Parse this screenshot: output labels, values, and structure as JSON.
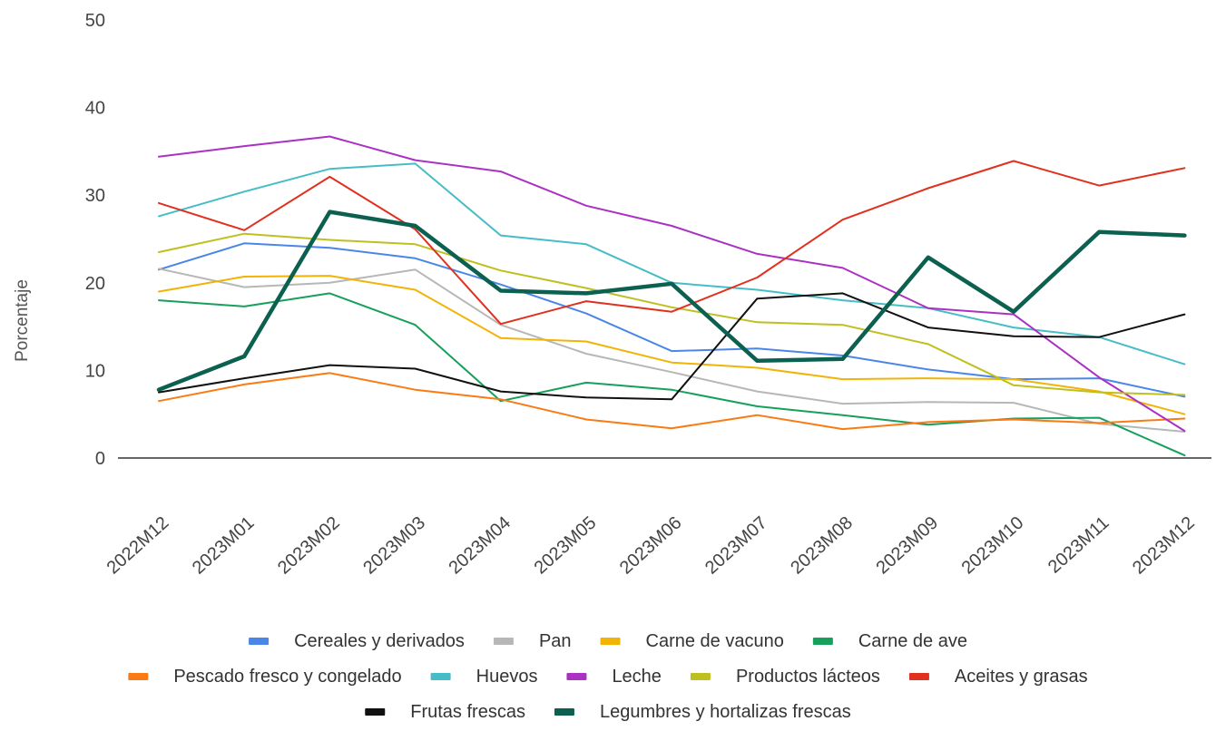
{
  "chart_data": {
    "type": "line",
    "title": "",
    "xlabel": "",
    "ylabel": "Porcentaje",
    "ylim": [
      0,
      50
    ],
    "yticks": [
      "0",
      "10",
      "20",
      "30",
      "40",
      "50"
    ],
    "grid": false,
    "legend_position": "bottom",
    "categories": [
      "2022M12",
      "2023M01",
      "2023M02",
      "2023M03",
      "2023M04",
      "2023M05",
      "2023M06",
      "2023M07",
      "2023M08",
      "2023M09",
      "2023M10",
      "2023M11",
      "2023M12"
    ],
    "series": [
      {
        "name": "Cereales y derivados",
        "color": "#4a86e8",
        "values": [
          21.5,
          24.5,
          24.0,
          22.8,
          19.8,
          16.5,
          12.2,
          12.5,
          11.7,
          10.1,
          9.0,
          9.1,
          7.0
        ]
      },
      {
        "name": "Pan",
        "color": "#b7b7b7",
        "values": [
          21.6,
          19.5,
          20.0,
          21.5,
          15.2,
          11.9,
          9.8,
          7.6,
          6.2,
          6.4,
          6.3,
          3.9,
          3.0
        ]
      },
      {
        "name": "Carne de vacuno",
        "color": "#f1b405",
        "values": [
          19.0,
          20.7,
          20.8,
          19.2,
          13.7,
          13.3,
          10.9,
          10.3,
          9.0,
          9.1,
          9.0,
          7.6,
          5.0
        ]
      },
      {
        "name": "Carne de ave",
        "color": "#16a05c",
        "values": [
          18.0,
          17.3,
          18.8,
          15.2,
          6.5,
          8.6,
          7.8,
          5.9,
          4.9,
          3.8,
          4.5,
          4.6,
          0.3
        ]
      },
      {
        "name": "Pescado fresco y congelado",
        "color": "#fa7a13",
        "values": [
          6.5,
          8.4,
          9.7,
          7.8,
          6.7,
          4.4,
          3.4,
          4.9,
          3.3,
          4.1,
          4.4,
          4.0,
          4.5
        ]
      },
      {
        "name": "Huevos",
        "color": "#46bdc6",
        "values": [
          27.6,
          30.4,
          33.0,
          33.6,
          25.4,
          24.4,
          20.0,
          19.2,
          18.0,
          17.1,
          14.9,
          13.8,
          10.7
        ]
      },
      {
        "name": "Leche",
        "color": "#ab30c4",
        "values": [
          34.4,
          35.6,
          36.7,
          34.0,
          32.7,
          28.8,
          26.5,
          23.3,
          21.7,
          17.1,
          16.4,
          9.2,
          3.1
        ]
      },
      {
        "name": "Productos lácteos",
        "color": "#bfbf1f",
        "values": [
          23.5,
          25.6,
          24.9,
          24.4,
          21.4,
          19.4,
          17.2,
          15.5,
          15.2,
          13.0,
          8.3,
          7.5,
          7.2
        ]
      },
      {
        "name": "Aceites y grasas",
        "color": "#e0301e",
        "values": [
          29.1,
          26.0,
          32.1,
          26.1,
          15.3,
          17.9,
          16.7,
          20.6,
          27.2,
          30.8,
          33.9,
          31.1,
          33.1
        ]
      },
      {
        "name": "Frutas frescas",
        "color": "#111111",
        "values": [
          7.5,
          9.1,
          10.6,
          10.2,
          7.6,
          6.9,
          6.7,
          18.2,
          18.8,
          14.9,
          13.9,
          13.8,
          16.4
        ]
      },
      {
        "name": "Legumbres y hortalizas frescas",
        "color": "#0b6050",
        "values": [
          7.8,
          11.6,
          28.1,
          26.5,
          19.1,
          18.8,
          19.9,
          11.1,
          11.3,
          22.9,
          16.7,
          25.8,
          25.4
        ]
      }
    ]
  }
}
